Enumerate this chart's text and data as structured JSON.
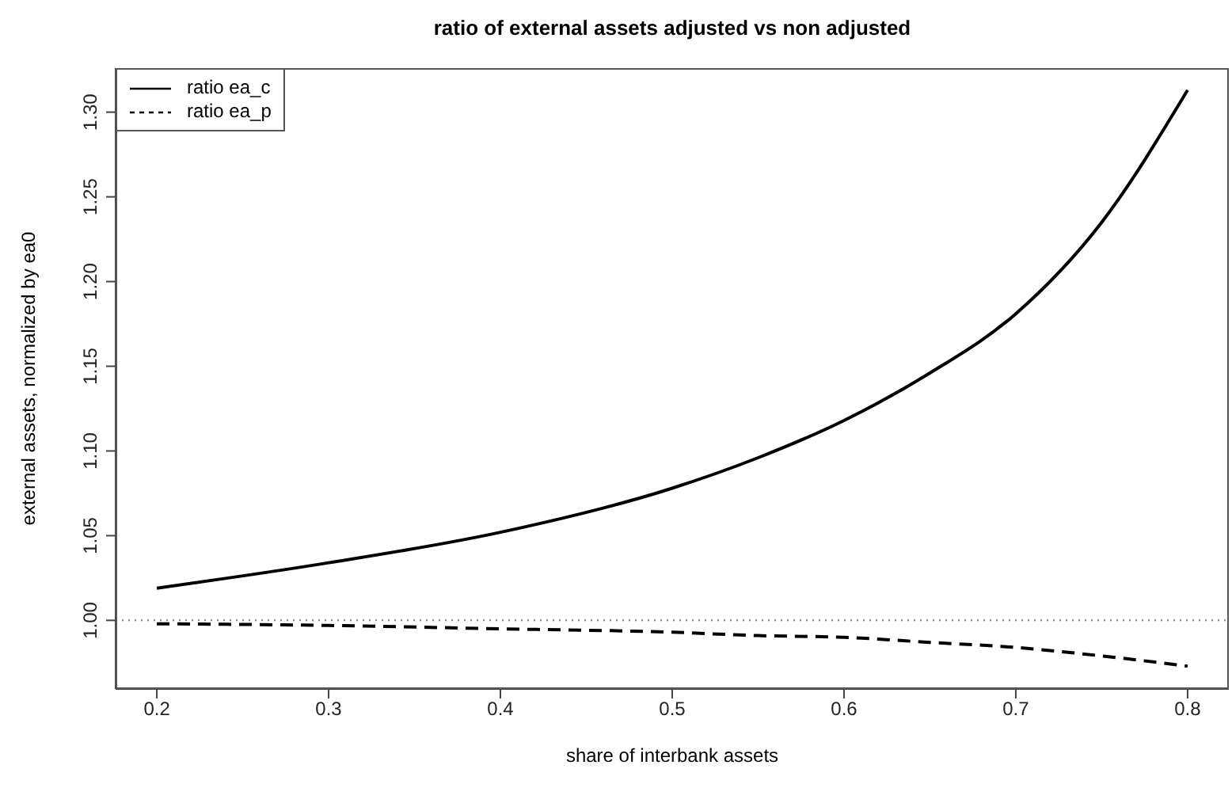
{
  "chart_data": {
    "type": "line",
    "title": "ratio of external assets adjusted vs non adjusted",
    "xlabel": "share of interbank assets",
    "ylabel": "external assets, normalized by ea0",
    "x": [
      0.2,
      0.3,
      0.4,
      0.5,
      0.55,
      0.6,
      0.65,
      0.7,
      0.75,
      0.8
    ],
    "series": [
      {
        "name": "ratio ea_c",
        "color": "#000000",
        "line_style": "solid",
        "values": [
          1.019,
          1.034,
          1.052,
          1.078,
          1.096,
          1.118,
          1.146,
          1.181,
          1.235,
          1.313
        ]
      },
      {
        "name": "ratio ea_p",
        "color": "#000000",
        "line_style": "dashed",
        "values": [
          0.998,
          0.997,
          0.995,
          0.993,
          0.991,
          0.99,
          0.987,
          0.984,
          0.979,
          0.973
        ]
      }
    ],
    "xlim": [
      0.176,
      0.824
    ],
    "xticks": [
      0.2,
      0.3,
      0.4,
      0.5,
      0.6,
      0.7,
      0.8
    ],
    "ylim": [
      0.9595,
      1.326
    ],
    "yticks": [
      {
        "value": 1.0,
        "label": "1.00"
      },
      {
        "value": 1.05,
        "label": "1.05"
      },
      {
        "value": 1.1,
        "label": "1.10"
      },
      {
        "value": 1.15,
        "label": "1.15"
      },
      {
        "value": 1.2,
        "label": "1.20"
      },
      {
        "value": 1.25,
        "label": "1.25"
      },
      {
        "value": 1.3,
        "label": "1.30"
      }
    ],
    "ref_lines": [
      {
        "axis": "y",
        "value": 1.0,
        "color": "#808080",
        "line_style": "dotted"
      }
    ],
    "legend": "top left",
    "grid": false
  }
}
